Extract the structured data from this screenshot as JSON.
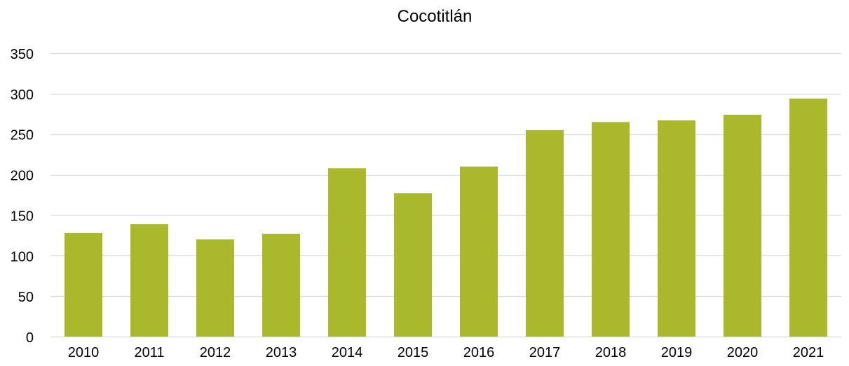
{
  "chart_data": {
    "type": "bar",
    "title": "Cocotitlán",
    "xlabel": "",
    "ylabel": "",
    "categories": [
      "2010",
      "2011",
      "2012",
      "2013",
      "2014",
      "2015",
      "2016",
      "2017",
      "2018",
      "2019",
      "2020",
      "2021"
    ],
    "values": [
      128,
      139,
      120,
      127,
      208,
      177,
      210,
      255,
      265,
      267,
      274,
      294
    ],
    "ylim": [
      0,
      350
    ],
    "yticks": [
      0,
      50,
      100,
      150,
      200,
      250,
      300,
      350
    ],
    "grid": true,
    "legend": "none",
    "bar_color": "#A9B92B",
    "grid_color": "#D9D9D9",
    "axis_color": "#D9D9D9"
  }
}
